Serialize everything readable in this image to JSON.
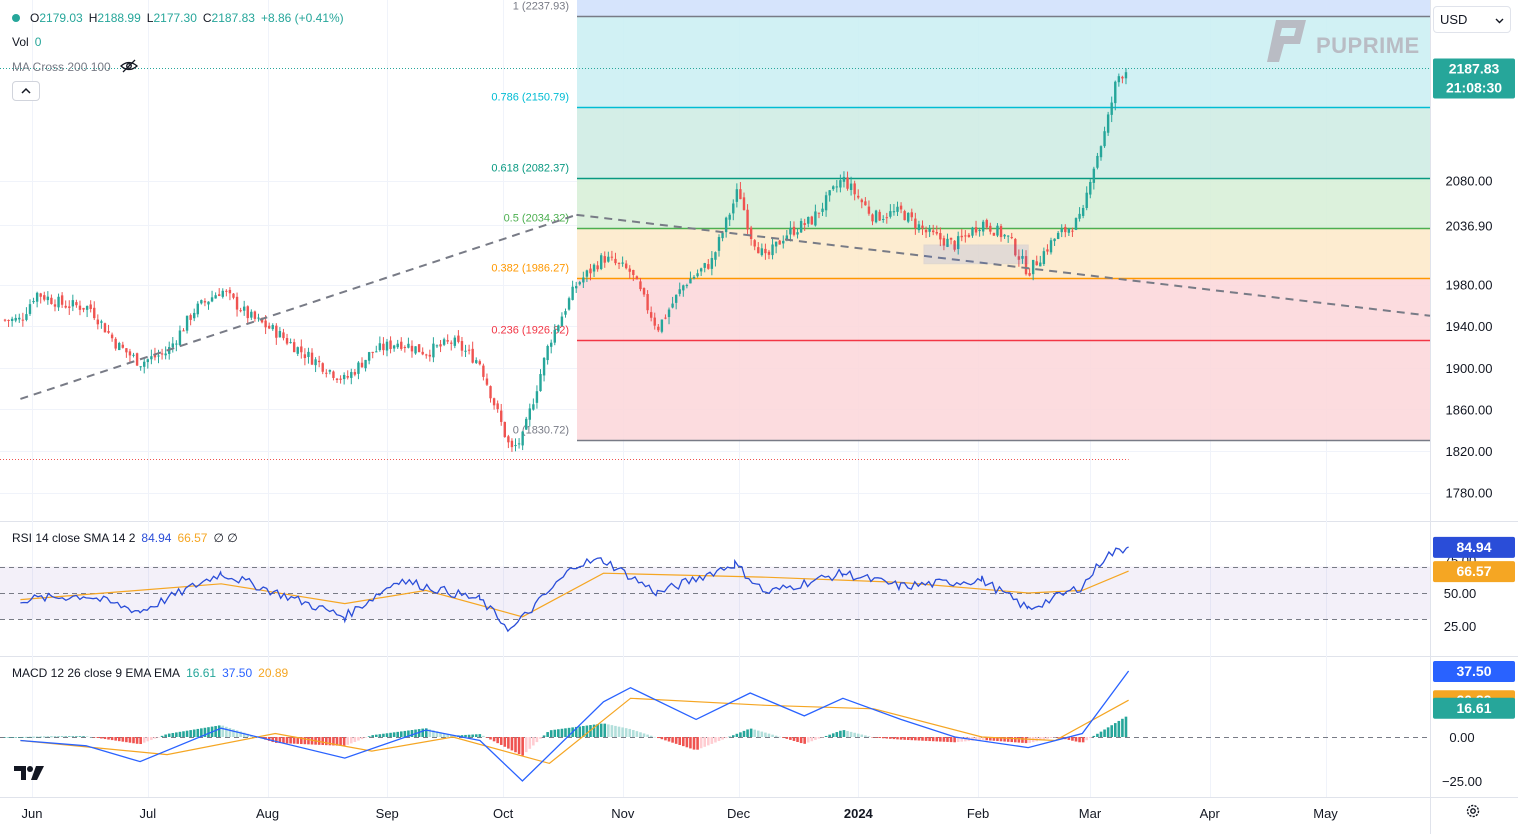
{
  "header": {
    "ohlc": {
      "o_label": "O",
      "o": "2179.03",
      "h_label": "H",
      "h": "2188.99",
      "l_label": "L",
      "l": "2177.30",
      "c_label": "C",
      "c": "2187.83",
      "chg": "+8.86 (+0.41%)"
    },
    "vol_label": "Vol",
    "vol": "0",
    "ma_label": "MA Cross 200 100",
    "currency": "USD",
    "watermark": "PUPRIME"
  },
  "colors": {
    "up": "#26a69a",
    "down": "#ef5350",
    "rsi": "#2a4dd8",
    "rsi_ma": "#f5a623",
    "macd": "#2962ff",
    "signal": "#f5a623"
  },
  "price_badge": {
    "price": "2187.83",
    "countdown": "21:08:30"
  },
  "chart_data": [
    {
      "type": "candlestick",
      "y_ticks": [
        1780,
        1820,
        1860,
        1900,
        1940,
        1980,
        2036.9,
        2080
      ],
      "y_tick_labels": [
        "1780.00",
        "1820.00",
        "1860.00",
        "1900.00",
        "1940.00",
        "1980.00",
        "2036.90",
        "2080.00"
      ],
      "x_ticks": [
        "Jun",
        "Jul",
        "Aug",
        "Sep",
        "Oct",
        "Nov",
        "Dec",
        "2024",
        "Feb",
        "Mar",
        "Apr",
        "May"
      ],
      "fib_levels": [
        {
          "ratio": 1,
          "price": 2237.93,
          "label": "1 (2237.93)",
          "color": "#787b86",
          "fill": "#e5e6e9"
        },
        {
          "ratio": 0.786,
          "price": 2150.79,
          "label": "0.786 (2150.79)",
          "color": "#00bcd4",
          "fill": "#c9eef2"
        },
        {
          "ratio": 0.618,
          "price": 2082.37,
          "label": "0.618 (2082.37)",
          "color": "#089981",
          "fill": "#cdebe3"
        },
        {
          "ratio": 0.5,
          "price": 2034.32,
          "label": "0.5 (2034.32)",
          "color": "#4caf50",
          "fill": "#d6efd6"
        },
        {
          "ratio": 0.382,
          "price": 1986.27,
          "label": "0.382 (1986.27)",
          "color": "#ff9800",
          "fill": "#fde9c8"
        },
        {
          "ratio": 0.236,
          "price": 1926.82,
          "label": "0.236 (1926.82)",
          "color": "#f23645",
          "fill": "#fbd6d9"
        },
        {
          "ratio": 0,
          "price": 1830.72,
          "label": "0 (1830.72)",
          "color": "#787b86",
          "fill": ""
        }
      ],
      "ohlc_keypoints": [
        {
          "date": "2023-05-29",
          "close": 1946
        },
        {
          "date": "2023-06-02",
          "close": 1972
        },
        {
          "date": "2023-06-09",
          "close": 1961
        },
        {
          "date": "2023-06-16",
          "close": 1958
        },
        {
          "date": "2023-06-23",
          "close": 1922
        },
        {
          "date": "2023-06-29",
          "close": 1905
        },
        {
          "date": "2023-07-06",
          "close": 1915
        },
        {
          "date": "2023-07-13",
          "close": 1955
        },
        {
          "date": "2023-07-20",
          "close": 1975
        },
        {
          "date": "2023-07-27",
          "close": 1950
        },
        {
          "date": "2023-08-03",
          "close": 1935
        },
        {
          "date": "2023-08-10",
          "close": 1915
        },
        {
          "date": "2023-08-21",
          "close": 1888
        },
        {
          "date": "2023-08-28",
          "close": 1915
        },
        {
          "date": "2023-09-04",
          "close": 1925
        },
        {
          "date": "2023-09-11",
          "close": 1915
        },
        {
          "date": "2023-09-18",
          "close": 1925
        },
        {
          "date": "2023-09-25",
          "close": 1905
        },
        {
          "date": "2023-10-03",
          "close": 1820
        },
        {
          "date": "2023-10-06",
          "close": 1832
        },
        {
          "date": "2023-10-13",
          "close": 1925
        },
        {
          "date": "2023-10-20",
          "close": 1980
        },
        {
          "date": "2023-10-27",
          "close": 2006
        },
        {
          "date": "2023-11-03",
          "close": 1992
        },
        {
          "date": "2023-11-10",
          "close": 1938
        },
        {
          "date": "2023-11-17",
          "close": 1981
        },
        {
          "date": "2023-11-24",
          "close": 2002
        },
        {
          "date": "2023-12-01",
          "close": 2072
        },
        {
          "date": "2023-12-04",
          "close": 2029
        },
        {
          "date": "2023-12-08",
          "close": 2004
        },
        {
          "date": "2023-12-13",
          "close": 2028
        },
        {
          "date": "2023-12-20",
          "close": 2042
        },
        {
          "date": "2023-12-28",
          "close": 2082
        },
        {
          "date": "2024-01-05",
          "close": 2045
        },
        {
          "date": "2024-01-12",
          "close": 2050
        },
        {
          "date": "2024-01-19",
          "close": 2029
        },
        {
          "date": "2024-01-26",
          "close": 2018
        },
        {
          "date": "2024-02-02",
          "close": 2040
        },
        {
          "date": "2024-02-09",
          "close": 2024
        },
        {
          "date": "2024-02-14",
          "close": 1992
        },
        {
          "date": "2024-02-21",
          "close": 2025
        },
        {
          "date": "2024-02-28",
          "close": 2044
        },
        {
          "date": "2024-03-01",
          "close": 2083
        },
        {
          "date": "2024-03-05",
          "close": 2128
        },
        {
          "date": "2024-03-08",
          "close": 2179
        },
        {
          "date": "2024-03-11",
          "close": 2187.83
        }
      ],
      "trendline": {
        "from": {
          "date": "2023-05-29",
          "price": 1870
        },
        "to": {
          "date": "2024-05-20",
          "price": 1942
        }
      },
      "trendline_segment": {
        "from": {
          "date": "2023-05-29",
          "price": 1870
        },
        "to": {
          "date": "2023-10-20",
          "price": 2047
        }
      },
      "consolidation_box": {
        "from_date": "2024-01-18",
        "to_date": "2024-02-14",
        "top": 2018,
        "bottom": 2000
      }
    },
    {
      "type": "line",
      "name": "RSI",
      "legend": "RSI 14 close SMA 14 2",
      "value": "84.94",
      "ma_value": "66.57",
      "extra": "∅ ∅",
      "levels": [
        25,
        50,
        75
      ],
      "level_labels": [
        "25.00",
        "50.00",
        "75.00"
      ],
      "band": [
        30,
        70
      ],
      "rsi": [
        {
          "date": "2023-05-29",
          "v": 45
        },
        {
          "date": "2023-06-15",
          "v": 48
        },
        {
          "date": "2023-06-29",
          "v": 36
        },
        {
          "date": "2023-07-20",
          "v": 65
        },
        {
          "date": "2023-08-21",
          "v": 32
        },
        {
          "date": "2023-09-04",
          "v": 60
        },
        {
          "date": "2023-09-25",
          "v": 45
        },
        {
          "date": "2023-10-03",
          "v": 22
        },
        {
          "date": "2023-10-20",
          "v": 72
        },
        {
          "date": "2023-10-27",
          "v": 75
        },
        {
          "date": "2023-11-10",
          "v": 50
        },
        {
          "date": "2023-11-30",
          "v": 72
        },
        {
          "date": "2023-12-08",
          "v": 50
        },
        {
          "date": "2023-12-28",
          "v": 65
        },
        {
          "date": "2024-01-12",
          "v": 55
        },
        {
          "date": "2024-02-02",
          "v": 60
        },
        {
          "date": "2024-02-14",
          "v": 38
        },
        {
          "date": "2024-02-28",
          "v": 55
        },
        {
          "date": "2024-03-05",
          "v": 78
        },
        {
          "date": "2024-03-11",
          "v": 84.94
        }
      ],
      "rsi_ma": [
        {
          "date": "2023-05-29",
          "v": 45
        },
        {
          "date": "2023-07-20",
          "v": 57
        },
        {
          "date": "2023-08-21",
          "v": 42
        },
        {
          "date": "2023-09-11",
          "v": 52
        },
        {
          "date": "2023-10-06",
          "v": 32
        },
        {
          "date": "2023-10-27",
          "v": 65
        },
        {
          "date": "2023-12-08",
          "v": 62
        },
        {
          "date": "2024-01-12",
          "v": 58
        },
        {
          "date": "2024-02-14",
          "v": 50
        },
        {
          "date": "2024-02-28",
          "v": 52
        },
        {
          "date": "2024-03-11",
          "v": 66.57
        }
      ]
    },
    {
      "type": "line",
      "name": "MACD",
      "legend": "MACD 12 26 close 9 EMA EMA",
      "hist_value": "16.61",
      "macd_value": "37.50",
      "signal_value": "20.89",
      "levels": [
        0,
        -25
      ],
      "level_labels": [
        "0.00",
        "−25.00"
      ],
      "macd": [
        {
          "date": "2023-05-29",
          "v": -2
        },
        {
          "date": "2023-06-15",
          "v": -5
        },
        {
          "date": "2023-06-29",
          "v": -14
        },
        {
          "date": "2023-07-20",
          "v": 5
        },
        {
          "date": "2023-08-21",
          "v": -12
        },
        {
          "date": "2023-09-11",
          "v": 4
        },
        {
          "date": "2023-09-25",
          "v": -2
        },
        {
          "date": "2023-10-06",
          "v": -25
        },
        {
          "date": "2023-10-27",
          "v": 20
        },
        {
          "date": "2023-11-03",
          "v": 28
        },
        {
          "date": "2023-11-20",
          "v": 10
        },
        {
          "date": "2023-12-04",
          "v": 25
        },
        {
          "date": "2023-12-18",
          "v": 12
        },
        {
          "date": "2023-12-28",
          "v": 22
        },
        {
          "date": "2024-01-12",
          "v": 10
        },
        {
          "date": "2024-01-26",
          "v": 0
        },
        {
          "date": "2024-02-14",
          "v": -6
        },
        {
          "date": "2024-02-28",
          "v": 2
        },
        {
          "date": "2024-03-11",
          "v": 37.5
        }
      ],
      "signal": [
        {
          "date": "2023-05-29",
          "v": -2
        },
        {
          "date": "2023-07-06",
          "v": -10
        },
        {
          "date": "2023-08-03",
          "v": 2
        },
        {
          "date": "2023-08-28",
          "v": -8
        },
        {
          "date": "2023-09-18",
          "v": 0
        },
        {
          "date": "2023-10-13",
          "v": -15
        },
        {
          "date": "2023-11-03",
          "v": 22
        },
        {
          "date": "2023-12-08",
          "v": 18
        },
        {
          "date": "2024-01-05",
          "v": 16
        },
        {
          "date": "2024-02-02",
          "v": 0
        },
        {
          "date": "2024-02-21",
          "v": -2
        },
        {
          "date": "2024-03-11",
          "v": 20.89
        }
      ]
    }
  ]
}
